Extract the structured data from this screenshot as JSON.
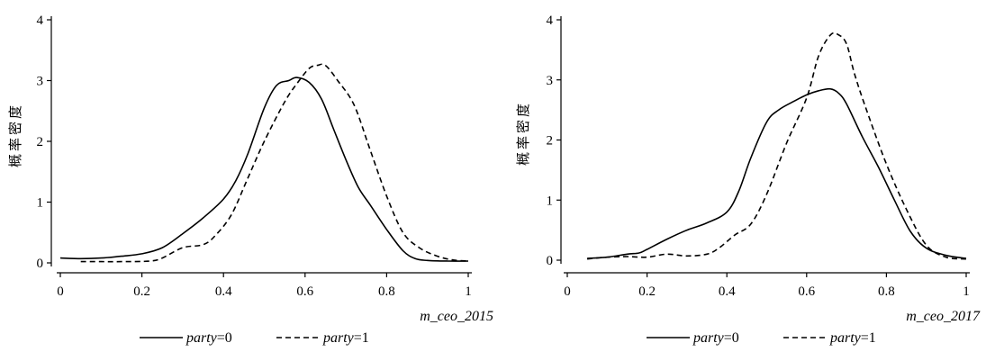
{
  "chart_data": [
    {
      "type": "line",
      "xlabel": "m_ceo_2015",
      "ylabel": "概率密度",
      "xlim": [
        0,
        1
      ],
      "ylim": [
        0,
        4
      ],
      "xticks": [
        "0",
        "0.2",
        "0.4",
        "0.6",
        "0.8",
        "1"
      ],
      "yticks": [
        "0",
        "1",
        "2",
        "3",
        "4"
      ],
      "grid": false,
      "legend_position": "bottom",
      "series": [
        {
          "name": "party=0",
          "style": "solid",
          "x": [
            0,
            0.05,
            0.1,
            0.15,
            0.2,
            0.25,
            0.3,
            0.35,
            0.4,
            0.43,
            0.46,
            0.5,
            0.53,
            0.56,
            0.58,
            0.61,
            0.64,
            0.67,
            0.7,
            0.73,
            0.76,
            0.8,
            0.84,
            0.87,
            0.9,
            0.95,
            1
          ],
          "y": [
            0.08,
            0.07,
            0.08,
            0.11,
            0.15,
            0.25,
            0.48,
            0.74,
            1.05,
            1.35,
            1.8,
            2.55,
            2.92,
            3.0,
            3.05,
            2.97,
            2.7,
            2.2,
            1.7,
            1.25,
            0.95,
            0.55,
            0.2,
            0.07,
            0.04,
            0.03,
            0.03
          ]
        },
        {
          "name": "party=1",
          "style": "dashed",
          "x": [
            0.05,
            0.1,
            0.15,
            0.22,
            0.25,
            0.3,
            0.35,
            0.38,
            0.42,
            0.46,
            0.5,
            0.55,
            0.58,
            0.61,
            0.63,
            0.65,
            0.68,
            0.72,
            0.76,
            0.8,
            0.84,
            0.88,
            0.92,
            0.96,
            1
          ],
          "y": [
            0.02,
            0.02,
            0.02,
            0.03,
            0.08,
            0.25,
            0.3,
            0.45,
            0.8,
            1.4,
            2.0,
            2.65,
            2.95,
            3.2,
            3.25,
            3.25,
            3.0,
            2.6,
            1.85,
            1.1,
            0.5,
            0.25,
            0.12,
            0.05,
            0.03
          ]
        }
      ]
    },
    {
      "type": "line",
      "xlabel": "m_ceo_2017",
      "ylabel": "概率密度",
      "xlim": [
        0,
        1
      ],
      "ylim": [
        0,
        4
      ],
      "xticks": [
        "0",
        "0.2",
        "0.4",
        "0.6",
        "0.8",
        "1"
      ],
      "yticks": [
        "0",
        "1",
        "2",
        "3",
        "4"
      ],
      "grid": false,
      "legend_position": "bottom",
      "series": [
        {
          "name": "party=0",
          "style": "solid",
          "x": [
            0.05,
            0.1,
            0.15,
            0.18,
            0.2,
            0.25,
            0.3,
            0.35,
            0.4,
            0.43,
            0.46,
            0.5,
            0.53,
            0.57,
            0.6,
            0.63,
            0.66,
            0.68,
            0.7,
            0.74,
            0.78,
            0.82,
            0.86,
            0.9,
            0.95,
            1
          ],
          "y": [
            0.03,
            0.05,
            0.1,
            0.12,
            0.18,
            0.35,
            0.5,
            0.62,
            0.8,
            1.15,
            1.7,
            2.3,
            2.5,
            2.65,
            2.75,
            2.82,
            2.85,
            2.78,
            2.6,
            2.05,
            1.55,
            1.0,
            0.48,
            0.2,
            0.08,
            0.03
          ]
        },
        {
          "name": "party=1",
          "style": "dashed",
          "x": [
            0.05,
            0.1,
            0.15,
            0.2,
            0.25,
            0.3,
            0.35,
            0.38,
            0.42,
            0.46,
            0.5,
            0.55,
            0.6,
            0.63,
            0.66,
            0.68,
            0.7,
            0.72,
            0.75,
            0.8,
            0.85,
            0.9,
            0.95,
            1
          ],
          "y": [
            0.02,
            0.05,
            0.06,
            0.05,
            0.1,
            0.07,
            0.1,
            0.2,
            0.42,
            0.6,
            1.1,
            1.95,
            2.7,
            3.4,
            3.75,
            3.75,
            3.6,
            3.1,
            2.5,
            1.6,
            0.85,
            0.25,
            0.05,
            0.02
          ]
        }
      ]
    }
  ],
  "legend": {
    "entries": [
      {
        "italic": "party",
        "suffix": "=0",
        "style": "solid"
      },
      {
        "italic": "party",
        "suffix": "=1",
        "style": "dashed"
      }
    ]
  }
}
